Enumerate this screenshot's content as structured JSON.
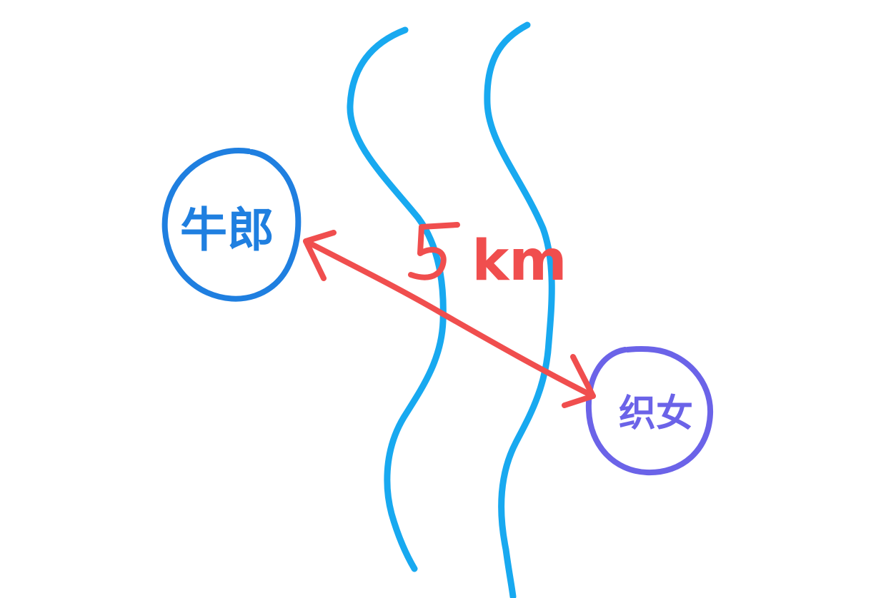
{
  "labels": {
    "left_person": "牛郎",
    "right_person": "织女",
    "distance_number": "5",
    "distance_unit": "km"
  },
  "colors": {
    "river": "#18a9f0",
    "left_circle": "#1f7fe0",
    "right_circle": "#6b63e8",
    "arrow": "#f04e4e",
    "background": "#ffffff"
  }
}
